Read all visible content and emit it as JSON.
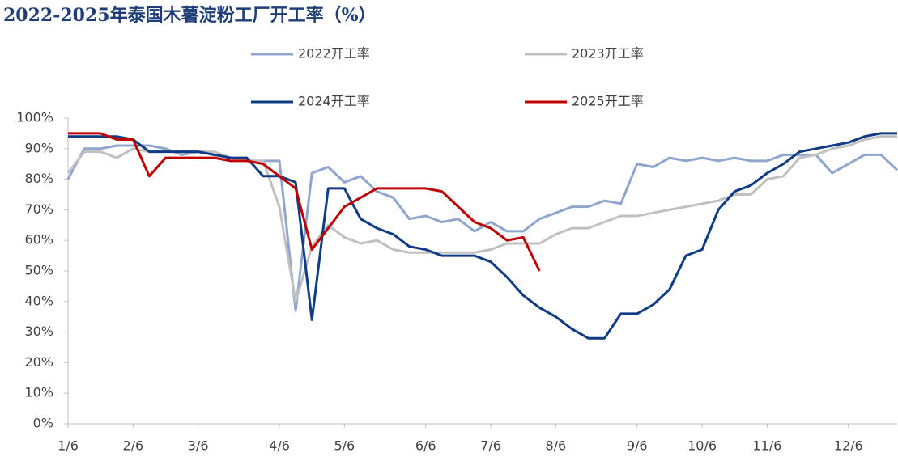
{
  "chart_data": {
    "type": "line",
    "title": "2022-2025年泰国木薯淀粉工厂开工率（%）",
    "categories": [
      "1/6",
      null,
      null,
      null,
      "2/6",
      null,
      null,
      null,
      "3/6",
      null,
      null,
      null,
      null,
      "4/6",
      null,
      null,
      null,
      "5/6",
      null,
      null,
      null,
      null,
      "6/6",
      null,
      null,
      null,
      "7/6",
      null,
      null,
      null,
      "8/6",
      null,
      null,
      null,
      null,
      "9/6",
      null,
      null,
      null,
      "10/6",
      null,
      null,
      null,
      "11/6",
      null,
      null,
      null,
      null,
      "12/6",
      null,
      null,
      null
    ],
    "series": [
      {
        "name": "2022开工率",
        "color": "#8ea6cf",
        "values": [
          80,
          90,
          90,
          91,
          91,
          91,
          90,
          88,
          89,
          88,
          87,
          86,
          86,
          86,
          37,
          82,
          84,
          79,
          81,
          76,
          74,
          67,
          68,
          66,
          67,
          63,
          66,
          63,
          63,
          67,
          69,
          71,
          71,
          73,
          72,
          85,
          84,
          87,
          86,
          87,
          86,
          87,
          86,
          86,
          88,
          88,
          88,
          82,
          85,
          88,
          88,
          83
        ]
      },
      {
        "name": "2023开工率",
        "color": "#c0c0c0",
        "values": [
          82,
          89,
          89,
          87,
          90,
          89,
          89,
          89,
          89,
          89,
          87,
          86,
          86,
          71,
          40,
          58,
          65,
          61,
          59,
          60,
          57,
          56,
          56,
          56,
          56,
          56,
          57,
          59,
          59,
          59,
          62,
          64,
          64,
          66,
          68,
          68,
          69,
          70,
          71,
          72,
          73,
          75,
          75,
          80,
          81,
          87,
          88,
          90,
          91,
          93,
          94,
          94
        ]
      },
      {
        "name": "2024开工率",
        "color": "#0f3c85",
        "values": [
          94,
          94,
          94,
          94,
          93,
          89,
          89,
          89,
          89,
          88,
          87,
          87,
          81,
          81,
          79,
          34,
          77,
          77,
          67,
          64,
          62,
          58,
          57,
          55,
          55,
          55,
          53,
          48,
          42,
          38,
          35,
          31,
          28,
          28,
          36,
          36,
          39,
          44,
          55,
          57,
          70,
          76,
          78,
          82,
          85,
          89,
          90,
          91,
          92,
          94,
          95,
          95
        ]
      },
      {
        "name": "2025开工率",
        "color": "#c00000",
        "values": [
          95,
          95,
          95,
          93,
          93,
          81,
          87,
          87,
          87,
          87,
          86,
          86,
          85,
          81,
          77,
          57,
          64,
          71,
          74,
          77,
          77,
          77,
          77,
          76,
          71,
          66,
          64,
          60,
          61,
          50,
          null,
          null,
          null,
          null,
          null,
          null,
          null,
          null,
          null,
          null,
          null,
          null,
          null,
          null,
          null,
          null,
          null,
          null,
          null,
          null,
          null,
          null
        ]
      }
    ],
    "ylim": [
      0,
      100
    ],
    "yticks": [
      {
        "value": 0,
        "label": "0%"
      },
      {
        "value": 10,
        "label": "10%"
      },
      {
        "value": 20,
        "label": "20%"
      },
      {
        "value": 30,
        "label": "30%"
      },
      {
        "value": 40,
        "label": "40%"
      },
      {
        "value": 50,
        "label": "50%"
      },
      {
        "value": 60,
        "label": "60%"
      },
      {
        "value": 70,
        "label": "70%"
      },
      {
        "value": 80,
        "label": "80%"
      },
      {
        "value": 90,
        "label": "90%"
      },
      {
        "value": 100,
        "label": "100%"
      }
    ],
    "grid": false
  }
}
